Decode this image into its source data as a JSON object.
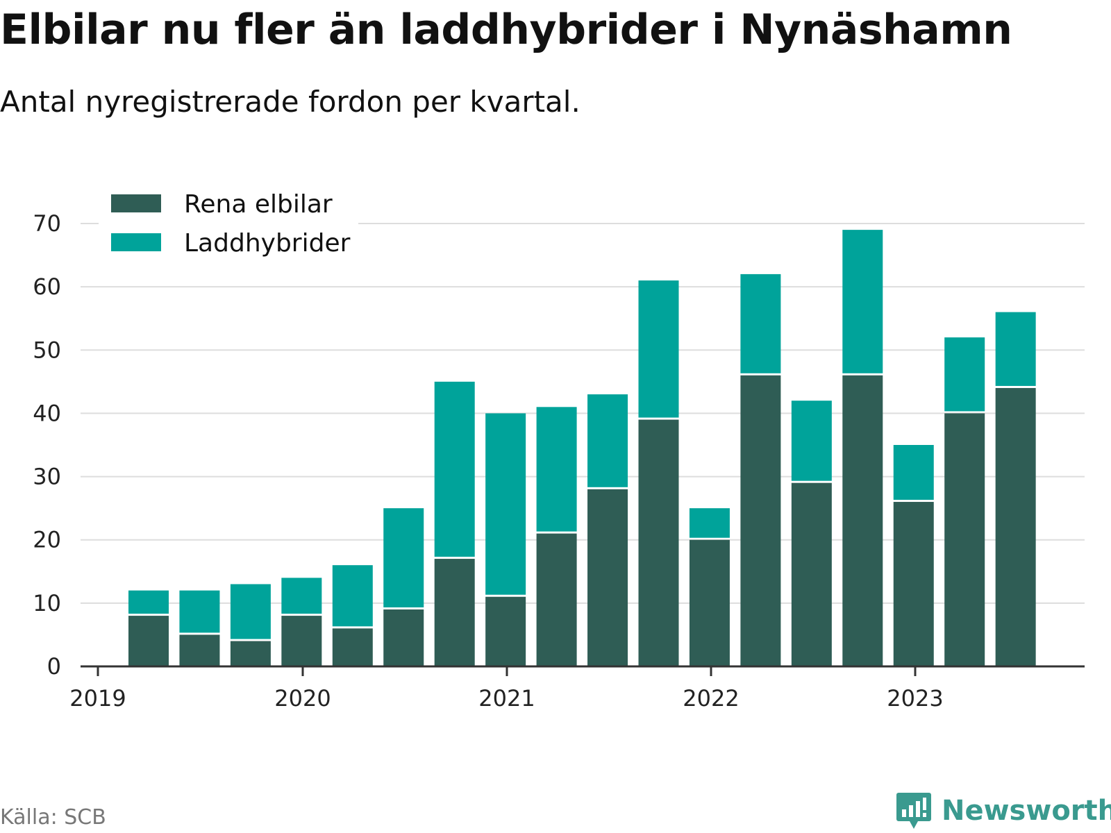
{
  "title": "Elbilar nu fler än laddhybrider i Nynäshamn",
  "subtitle": "Antal nyregistrerade fordon per kvartal.",
  "source": "Källa: SCB",
  "brand": "Newsworthy",
  "colors": {
    "rena_elbilar": "#2f5d55",
    "laddhybrider": "#00a39a",
    "grid": "#dddddd",
    "axis": "#333333",
    "brand": "#3a9a8f"
  },
  "chart_data": {
    "type": "bar",
    "stacked": true,
    "categories": [
      "2019 Q2",
      "2019 Q3",
      "2019 Q4",
      "2020 Q1",
      "2020 Q2",
      "2020 Q3",
      "2020 Q4",
      "2021 Q1",
      "2021 Q2",
      "2021 Q3",
      "2021 Q4",
      "2022 Q1",
      "2022 Q2",
      "2022 Q3",
      "2022 Q4",
      "2023 Q1",
      "2023 Q2",
      "2023 Q3"
    ],
    "series": [
      {
        "name": "Rena elbilar",
        "values": [
          8,
          5,
          4,
          8,
          6,
          9,
          17,
          11,
          21,
          28,
          39,
          20,
          46,
          29,
          46,
          26,
          40,
          44
        ]
      },
      {
        "name": "Laddhybrider",
        "values": [
          4,
          7,
          9,
          6,
          10,
          16,
          28,
          29,
          20,
          15,
          22,
          5,
          16,
          13,
          23,
          9,
          12,
          12
        ]
      }
    ],
    "x_tick_labels": [
      "2019",
      "2020",
      "2021",
      "2022",
      "2023"
    ],
    "y_ticks": [
      0,
      10,
      20,
      30,
      40,
      50,
      60,
      70
    ],
    "ylim": [
      0,
      70
    ],
    "grid": true,
    "legend_position": "top-left",
    "xlabel": "",
    "ylabel": ""
  }
}
